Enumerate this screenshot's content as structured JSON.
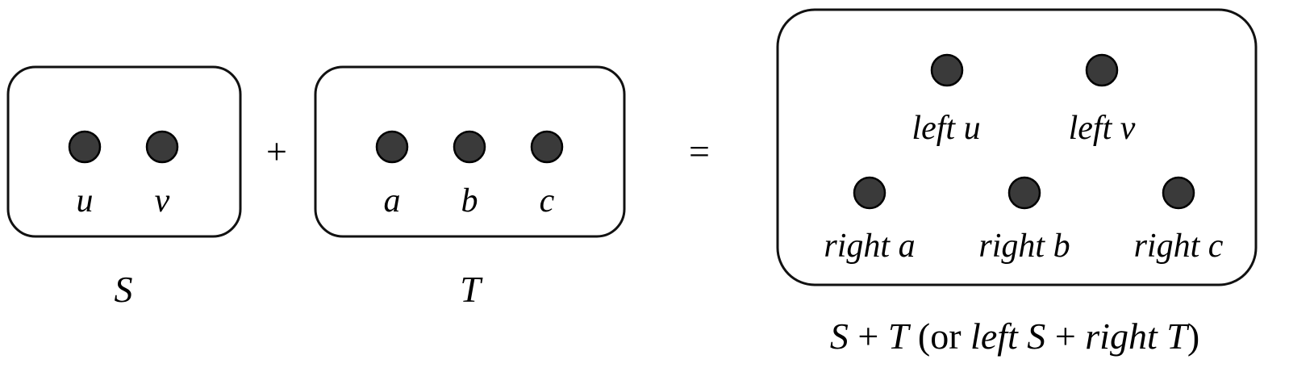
{
  "set_s": {
    "elements": [
      "u",
      "v"
    ],
    "caption": "S"
  },
  "set_t": {
    "elements": [
      "a",
      "b",
      "c"
    ],
    "caption": "T"
  },
  "operators": {
    "plus": "+",
    "equals": "="
  },
  "sum": {
    "top_row": [
      "left u",
      "left v"
    ],
    "bottom_row": [
      "right a",
      "right b",
      "right c"
    ],
    "caption": {
      "s": "S",
      "plus1": "+",
      "t": "T",
      "open": "(or",
      "left_s": "left S",
      "plus2": "+",
      "right_t": "right T",
      "close": ")"
    }
  },
  "colors": {
    "dot_fill": "#3a3a3a",
    "stroke": "#111111"
  }
}
